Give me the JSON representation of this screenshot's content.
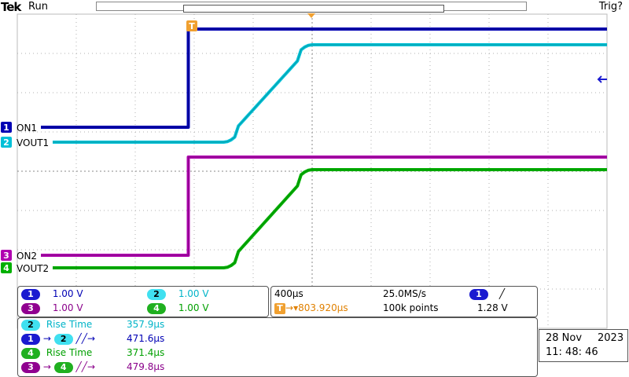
{
  "header": {
    "brand": "Tek",
    "acq_status": "Run",
    "trigger_status": "Trig?"
  },
  "channels": [
    {
      "num": "1",
      "label": "ON1",
      "color": "#0000b4"
    },
    {
      "num": "2",
      "label": "VOUT1",
      "color": "#00c0d8"
    },
    {
      "num": "3",
      "label": "ON2",
      "color": "#b000b0"
    },
    {
      "num": "4",
      "label": "VOUT2",
      "color": "#00b000"
    }
  ],
  "trigger_marker": "T",
  "scales": {
    "ch1": "1.00 V",
    "ch2": "1.00 V",
    "ch3": "1.00 V",
    "ch4": "1.00 V"
  },
  "horizontal": {
    "timebase": "400µs",
    "sample_rate": "25.0MS/s",
    "trigger_position": "▾803.920µs",
    "record_length": "100k points",
    "trigger_source": "1",
    "trigger_slope": "╱",
    "trigger_level": "1.28 V"
  },
  "measurements": [
    {
      "label": "Rise Time",
      "value": "357.9µs"
    },
    {
      "label": "→",
      "value": "471.6µs"
    },
    {
      "label": "Rise Time",
      "value": "371.4µs"
    },
    {
      "label": "→",
      "value": "479.8µs"
    }
  ],
  "meas_edge": "╱╱→",
  "datetime": {
    "date": "28 Nov",
    "year": "2023",
    "time": "11: 48: 46"
  },
  "waveforms": {
    "time_units": "divisions",
    "voltage_units": "V",
    "ch1": {
      "low": 0.0,
      "high": 3.3,
      "step_at_div": 2.9
    },
    "ch2": {
      "low": 0.0,
      "high": 3.3,
      "rise_start_div": 3.5,
      "rise_end_div": 5.0
    },
    "ch3": {
      "low": 0.0,
      "high": 3.3,
      "step_at_div": 2.9
    },
    "ch4": {
      "low": 0.0,
      "high": 3.3,
      "rise_start_div": 3.5,
      "rise_end_div": 5.0
    }
  }
}
